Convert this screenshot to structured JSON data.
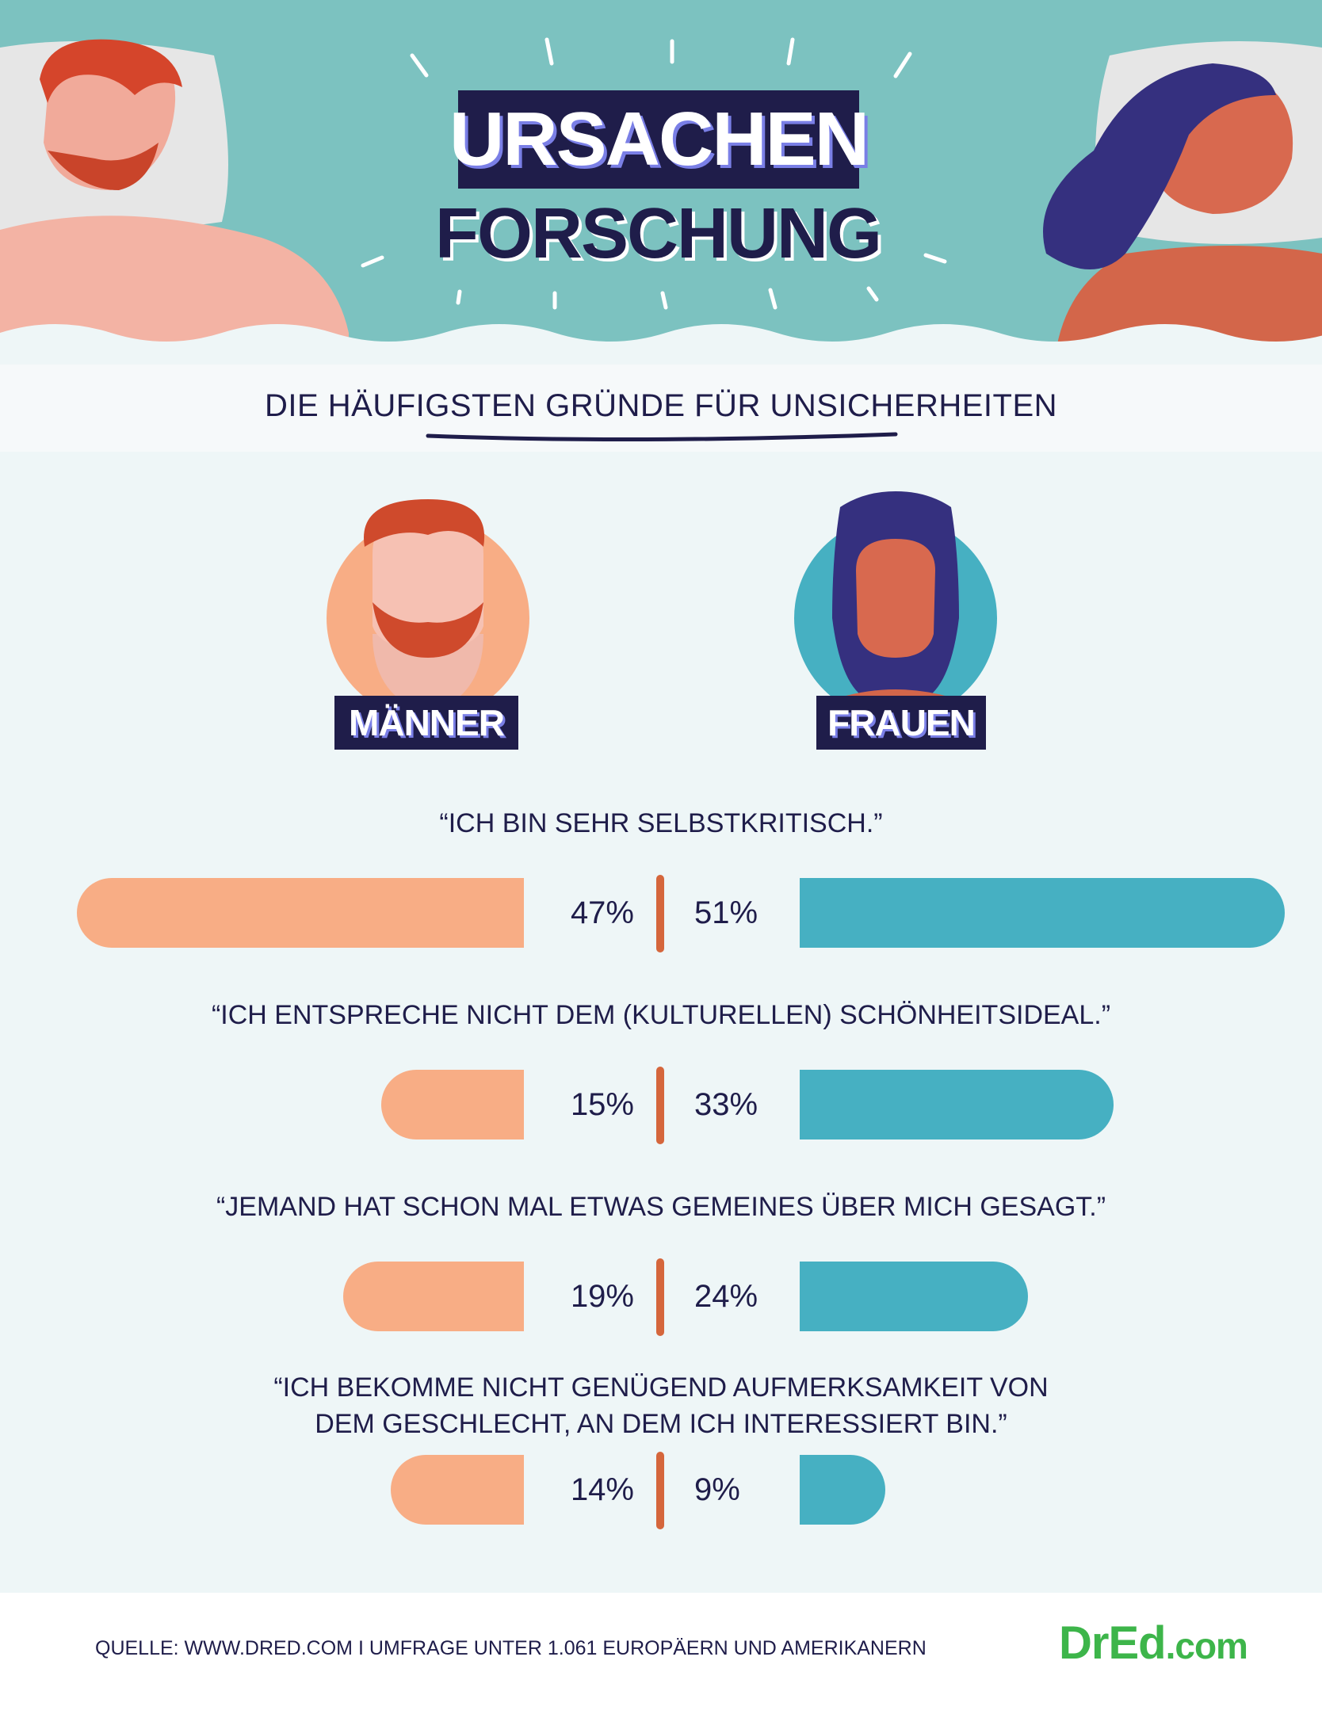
{
  "header": {
    "title_line1": "URSACHEN",
    "title_line2": "FORSCHUNG"
  },
  "subtitle": "DIE HÄUFIGSTEN GRÜNDE FÜR UNSICHERHEITEN",
  "groups": {
    "men_label": "MÄNNER",
    "women_label": "FRAUEN"
  },
  "colors": {
    "men": "#f8ad85",
    "women": "#46b0c2",
    "divider": "#d5663c",
    "navy": "#1f1d4a",
    "teal_bg": "#7cc2c0"
  },
  "chart_data": {
    "type": "bar",
    "orientation": "diverging-horizontal",
    "categories": [
      "“ICH BIN SEHR SELBSTKRITISCH.”",
      "“ICH ENTSPRECHE NICHT DEM (KULTURELLEN) SCHÖNHEITSIDEAL.”",
      "“JEMAND HAT SCHON MAL ETWAS GEMEINES ÜBER MICH GESAGT.”",
      "“ICH BEKOMME NICHT GENÜGEND AUFMERKSAMKEIT VON DEM GESCHLECHT, AN DEM ICH INTERESSIERT BIN.”"
    ],
    "category_lines": [
      [
        "“ICH BIN SEHR SELBSTKRITISCH.”"
      ],
      [
        "“ICH ENTSPRECHE NICHT DEM (KULTURELLEN) SCHÖNHEITSIDEAL.”"
      ],
      [
        "“JEMAND HAT SCHON MAL ETWAS GEMEINES ÜBER MICH GESAGT.”"
      ],
      [
        "“ICH BEKOMME NICHT GENÜGEND AUFMERKSAMKEIT VON",
        "DEM GESCHLECHT, AN DEM ICH INTERESSIERT BIN.”"
      ]
    ],
    "series": [
      {
        "name": "MÄNNER",
        "values": [
          47,
          15,
          19,
          14
        ],
        "labels": [
          "47%",
          "15%",
          "19%",
          "14%"
        ]
      },
      {
        "name": "FRAUEN",
        "values": [
          51,
          33,
          24,
          9
        ],
        "labels": [
          "51%",
          "33%",
          "24%",
          "9%"
        ]
      }
    ],
    "unit": "%",
    "title": "DIE HÄUFIGSTEN GRÜNDE FÜR UNSICHERHEITEN"
  },
  "footer": {
    "source": "QUELLE: WWW.DRED.COM I UMFRAGE UNTER 1.061 EUROPÄERN UND AMERIKANERN",
    "logo_main": "DrEd",
    "logo_suffix": ".com"
  }
}
